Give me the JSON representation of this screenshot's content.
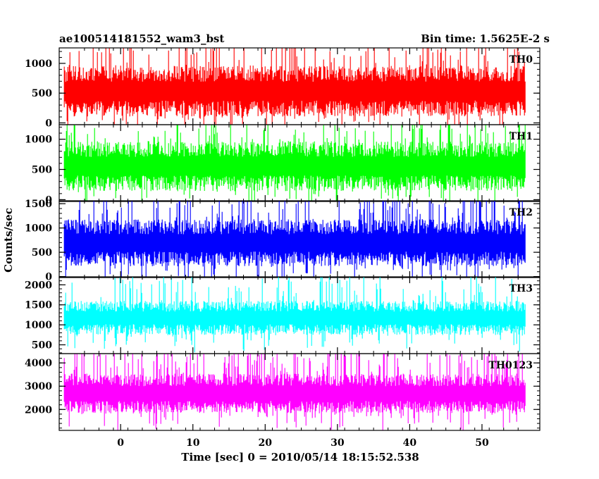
{
  "header": {
    "title": "ae100514181552_wam3_bst",
    "bin_time": "Bin time: 1.5625E-2 s"
  },
  "chart_data": {
    "type": "line",
    "xlabel": "Time [sec] 0 = 2010/05/14 18:15:52.538",
    "ylabel": "Counts/sec",
    "xlim": [
      -8.5,
      58
    ],
    "x_range_data": [
      -7.8,
      56
    ],
    "xticks": [
      0,
      10,
      20,
      30,
      40,
      50
    ],
    "panels": [
      {
        "name": "TH0",
        "color": "#ff0000",
        "ylim": [
          -30,
          1260
        ],
        "yticks": [
          0,
          500,
          1000
        ],
        "base": 540,
        "noise": 300,
        "spikes": 640,
        "seed": 11
      },
      {
        "name": "TH1",
        "color": "#00ff00",
        "ylim": [
          -30,
          1240
        ],
        "yticks": [
          0,
          500,
          1000
        ],
        "base": 560,
        "noise": 290,
        "spikes": 600,
        "seed": 23
      },
      {
        "name": "TH2",
        "color": "#0000ff",
        "ylim": [
          -20,
          1560
        ],
        "yticks": [
          0,
          500,
          1000,
          1500
        ],
        "base": 700,
        "noise": 340,
        "spikes": 760,
        "seed": 37
      },
      {
        "name": "TH3",
        "color": "#00ffff",
        "ylim": [
          280,
          2200
        ],
        "yticks": [
          500,
          1000,
          1500,
          2000
        ],
        "base": 1180,
        "noise": 300,
        "spikes": 800,
        "seed": 41
      },
      {
        "name": "TH0123",
        "color": "#ff00ff",
        "ylim": [
          1100,
          4400
        ],
        "yticks": [
          2000,
          3000,
          4000
        ],
        "base": 2700,
        "noise": 600,
        "spikes": 1500,
        "seed": 53
      }
    ]
  }
}
